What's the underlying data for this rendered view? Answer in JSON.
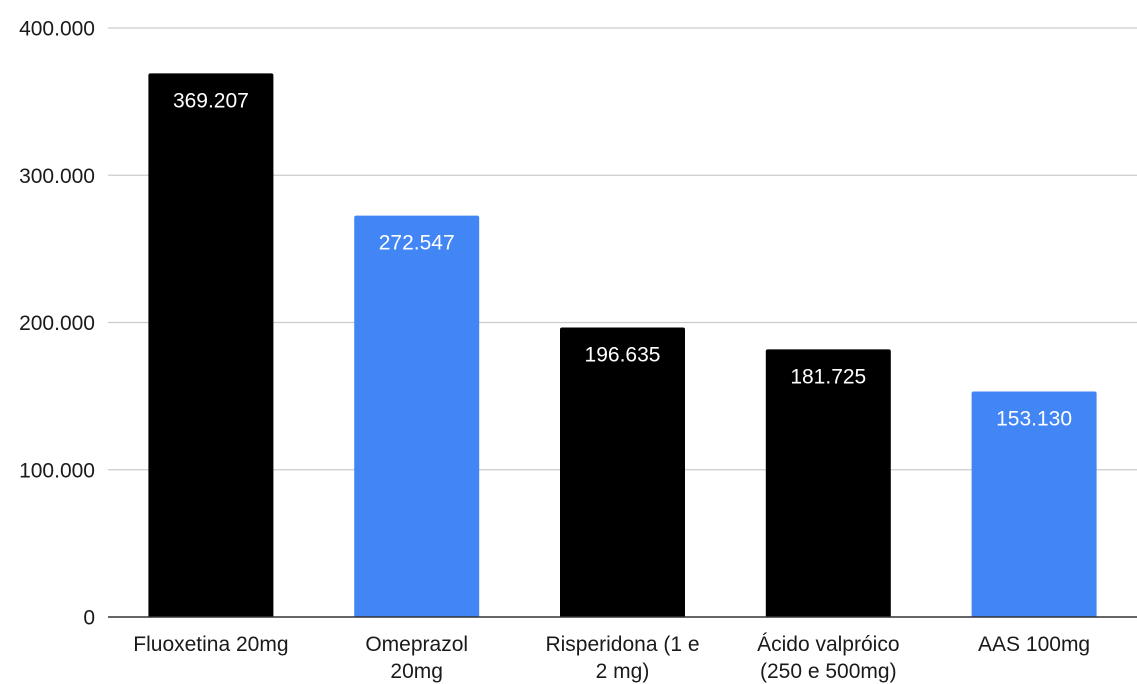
{
  "chart_data": {
    "type": "bar",
    "categories": [
      [
        "Fluoxetina 20mg"
      ],
      [
        "Omeprazol",
        "20mg"
      ],
      [
        "Risperidona (1 e",
        "2 mg)"
      ],
      [
        "Ácido valpróico",
        "(250 e 500mg)"
      ],
      [
        "AAS 100mg"
      ]
    ],
    "values": [
      369207,
      272547,
      196635,
      181725,
      153130
    ],
    "value_labels": [
      "369.207",
      "272.547",
      "196.635",
      "181.725",
      "153.130"
    ],
    "bar_colors": [
      "#000000",
      "#4285f4",
      "#000000",
      "#000000",
      "#4285f4"
    ],
    "ylim": [
      0,
      400000
    ],
    "yticks": [
      0,
      100000,
      200000,
      300000,
      400000
    ],
    "ytick_labels": [
      "0",
      "100.000",
      "200.000",
      "300.000",
      "400.000"
    ],
    "grid": true,
    "gridline_color": "#cccccc",
    "axis_color": "#333333",
    "label_color": "#ffffff",
    "title": "",
    "xlabel": "",
    "ylabel": ""
  }
}
